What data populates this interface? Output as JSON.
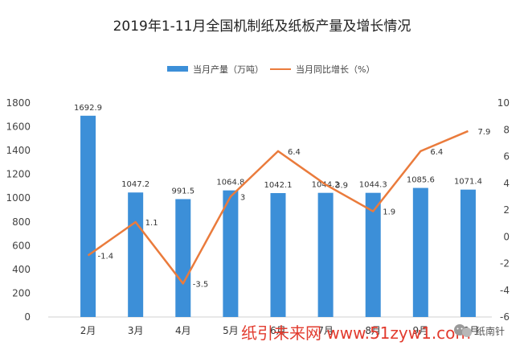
{
  "chart_data": {
    "type": "bar",
    "title": "2019年1-11月全国机制纸及纸板产量及增长情况",
    "categories": [
      "2月",
      "3月",
      "4月",
      "5月",
      "6月",
      "7月",
      "8月",
      "9月",
      "10月"
    ],
    "series": [
      {
        "name": "当月产量（万吨）",
        "type": "bar",
        "axis": "left",
        "color": "#3c8fd8",
        "values": [
          1692.9,
          1047.2,
          991.5,
          1064.8,
          1042.1,
          1044.2,
          1044.3,
          1085.6,
          1071.4
        ],
        "labels": [
          "1692.9",
          "1047.2",
          "991.5",
          "1064.8",
          "1042.1",
          "1044.2",
          "1044.3",
          "1085.6",
          "1071.4"
        ]
      },
      {
        "name": "当月同比增长（%）",
        "type": "line",
        "axis": "right",
        "color": "#ea7b3c",
        "values": [
          -1.4,
          1.1,
          -3.5,
          3,
          6.4,
          3.9,
          1.9,
          6.4,
          7.9
        ],
        "labels": [
          "-1.4",
          "1.1",
          "-3.5",
          "3",
          "6.4",
          "3.9",
          "1.9",
          "6.4",
          "7.9"
        ]
      }
    ],
    "ylim_left": [
      0,
      1800
    ],
    "yticks_left": [
      0,
      200,
      400,
      600,
      800,
      1000,
      1200,
      1400,
      1600,
      1800
    ],
    "ylim_right": [
      -6,
      10
    ],
    "yticks_right": [
      -6,
      -4,
      -2,
      0,
      2,
      4,
      6,
      8,
      10
    ],
    "legend_position": "top-center",
    "grid": false
  },
  "overlay": {
    "watermark": "纸引未来网 www.51zyw1.com",
    "account_name": "纸南针",
    "wechat_icon": "wechat-icon"
  }
}
